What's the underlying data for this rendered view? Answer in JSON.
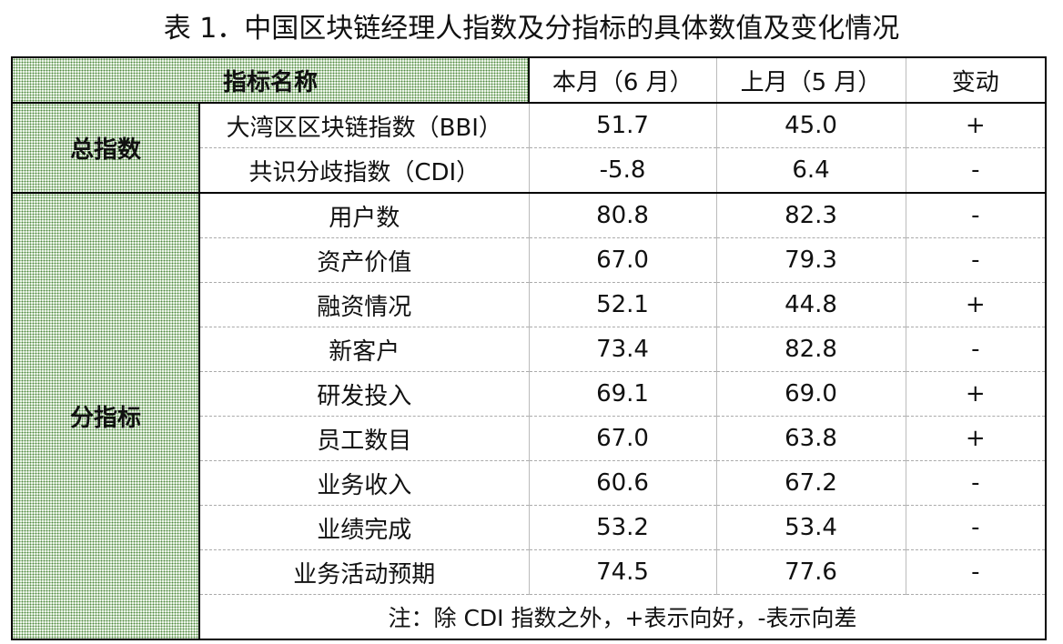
{
  "title": "表 1．中国区块链经理人指数及分指标的具体数值及变化情况",
  "header": {
    "name": "指标名称",
    "current": "本月（6 月）",
    "previous": "上月（5 月）",
    "change": "变动"
  },
  "groups": [
    {
      "label": "总指数",
      "rows": [
        {
          "name": "大湾区区块链指数（BBI）",
          "current": "51.7",
          "previous": "45.0",
          "change": "+"
        },
        {
          "name": "共识分歧指数（CDI）",
          "current": "-5.8",
          "previous": "6.4",
          "change": "-"
        }
      ]
    },
    {
      "label": "分指标",
      "rows": [
        {
          "name": "用户数",
          "current": "80.8",
          "previous": "82.3",
          "change": "-"
        },
        {
          "name": "资产价值",
          "current": "67.0",
          "previous": "79.3",
          "change": "-"
        },
        {
          "name": "融资情况",
          "current": "52.1",
          "previous": "44.8",
          "change": "+"
        },
        {
          "name": "新客户",
          "current": "73.4",
          "previous": "82.8",
          "change": "-"
        },
        {
          "name": "研发投入",
          "current": "69.1",
          "previous": "69.0",
          "change": "+"
        },
        {
          "name": "员工数目",
          "current": "67.0",
          "previous": "63.8",
          "change": "+"
        },
        {
          "name": "业务收入",
          "current": "60.6",
          "previous": "67.2",
          "change": "-"
        },
        {
          "name": "业绩完成",
          "current": "53.2",
          "previous": "53.4",
          "change": "-"
        },
        {
          "name": "业务活动预期",
          "current": "74.5",
          "previous": "77.6",
          "change": "-"
        }
      ]
    }
  ],
  "note": "注：除 CDI 指数之外，+表示向好，-表示向差",
  "colors": {
    "pattern": "#4f8a3f",
    "border": "#000000"
  }
}
